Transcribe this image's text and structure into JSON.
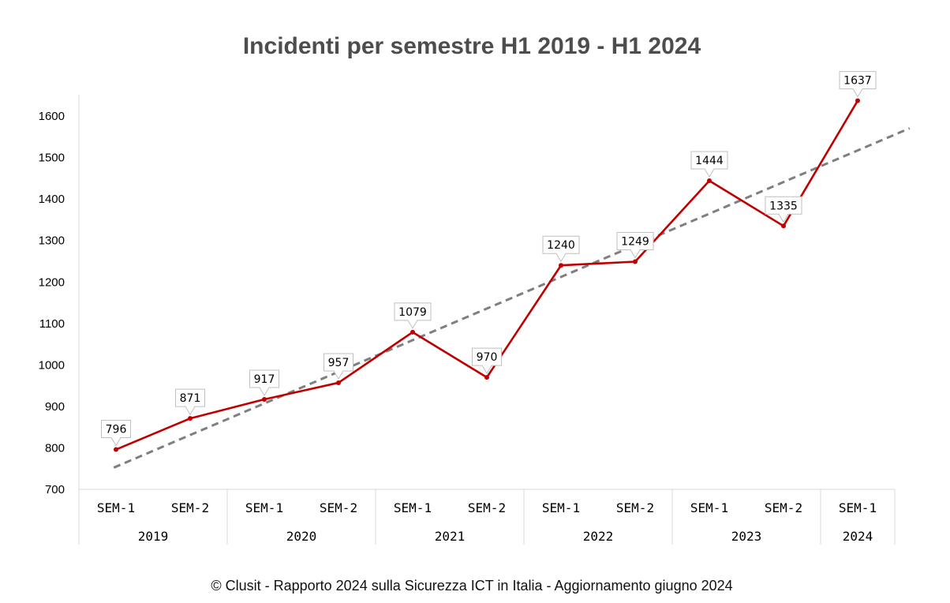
{
  "chart_data": {
    "type": "line",
    "title": "Incidenti per semestre H1 2019 - H1 2024",
    "categories": [
      "SEM-1",
      "SEM-2",
      "SEM-1",
      "SEM-2",
      "SEM-1",
      "SEM-2",
      "SEM-1",
      "SEM-2",
      "SEM-1",
      "SEM-2",
      "SEM-1"
    ],
    "groups": [
      {
        "label": "2019",
        "span": 2
      },
      {
        "label": "2020",
        "span": 2
      },
      {
        "label": "2021",
        "span": 2
      },
      {
        "label": "2022",
        "span": 2
      },
      {
        "label": "2023",
        "span": 2
      },
      {
        "label": "2024",
        "span": 1
      }
    ],
    "series": [
      {
        "values": [
          796,
          871,
          917,
          957,
          1079,
          970,
          1240,
          1249,
          1444,
          1335,
          1637
        ],
        "color": "#c00000"
      }
    ],
    "trendline": {
      "type": "linear",
      "style": "dashed",
      "color": "#7f7f7f"
    },
    "data_labels": true,
    "yticks": [
      700,
      800,
      900,
      1000,
      1100,
      1200,
      1300,
      1400,
      1500,
      1600
    ],
    "ylim": [
      700,
      1650
    ],
    "grid": false,
    "legend": "none"
  },
  "footer": "© Clusit - Rapporto 2024 sulla Sicurezza ICT in Italia - Aggiornamento giugno 2024"
}
